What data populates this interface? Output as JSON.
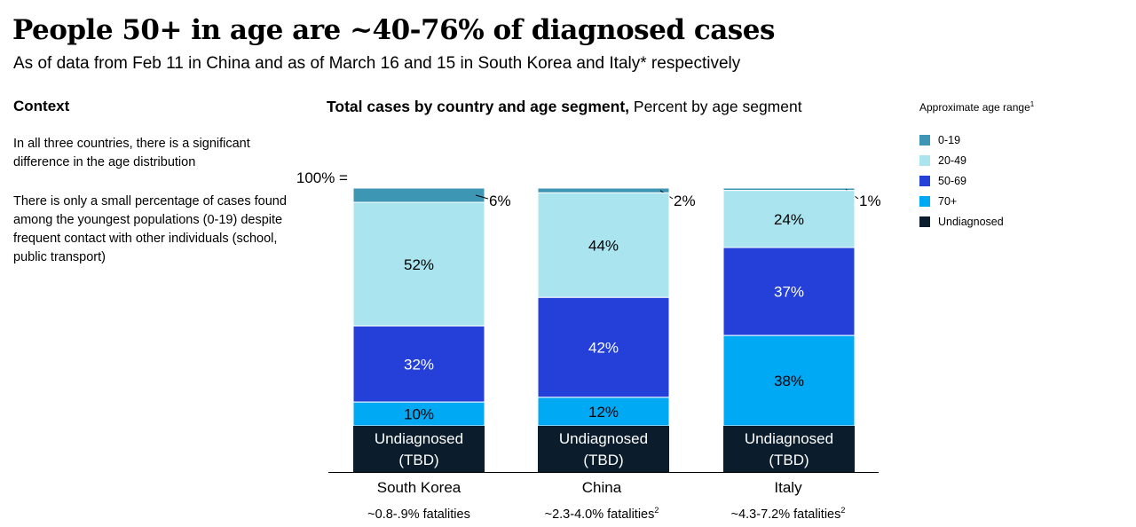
{
  "header": {
    "title": "People 50+ in age are ~40-76% of diagnosed cases",
    "subtitle": "As of data from Feb 11 in China and as of March 16 and 15 in South Korea and Italy* respectively"
  },
  "context": {
    "heading": "Context",
    "paragraphs": [
      "In all three countries, there is a significant difference in the age distribution",
      "There is only a small percentage of cases found among the youngest populations (0-19) despite frequent contact with other individuals (school, public transport)"
    ]
  },
  "legend": {
    "title": "Approximate age range",
    "title_sup": "1",
    "items": [
      {
        "label": "0-19",
        "color": "#3c96b4"
      },
      {
        "label": "20-49",
        "color": "#aae4ee"
      },
      {
        "label": "50-69",
        "color": "#2440d8"
      },
      {
        "label": "70+",
        "color": "#00a9f4"
      },
      {
        "label": "Undiagnosed",
        "color": "#0b1d2d"
      }
    ]
  },
  "chart_data": {
    "type": "bar",
    "stacked": true,
    "title_bold": "Total cases by country and age segment,",
    "title_rest": " Percent by age segment",
    "y_axis_marker": "100% =",
    "categories": [
      "South Korea",
      "China",
      "Italy"
    ],
    "fatalities": [
      {
        "text": "~0.8-.9% fatalities",
        "sup": ""
      },
      {
        "text": "~2.3-4.0% fatalities",
        "sup": "2"
      },
      {
        "text": "~4.3-7.2% fatalities",
        "sup": "2"
      }
    ],
    "series": [
      {
        "name": "0-19",
        "color": "#3c96b4",
        "values": [
          6,
          2,
          1
        ],
        "labels": [
          "6%",
          "2%",
          "1%"
        ],
        "label_text_color": "#000000",
        "outside_label": true
      },
      {
        "name": "20-49",
        "color": "#aae4ee",
        "values": [
          52,
          44,
          24
        ],
        "labels": [
          "52%",
          "44%",
          "24%"
        ],
        "label_text_color": "#000000"
      },
      {
        "name": "50-69",
        "color": "#2440d8",
        "values": [
          32,
          42,
          37
        ],
        "labels": [
          "32%",
          "42%",
          "37%"
        ],
        "label_text_color": "#ffffff"
      },
      {
        "name": "70+",
        "color": "#00a9f4",
        "values": [
          10,
          12,
          38
        ],
        "labels": [
          "10%",
          "12%",
          "38%"
        ],
        "label_text_color": "#000000"
      }
    ],
    "undiagnosed": {
      "name": "Undiagnosed",
      "label_line1": "Undiagnosed",
      "label_line2": "(TBD)",
      "color": "#0b1d2d"
    }
  }
}
